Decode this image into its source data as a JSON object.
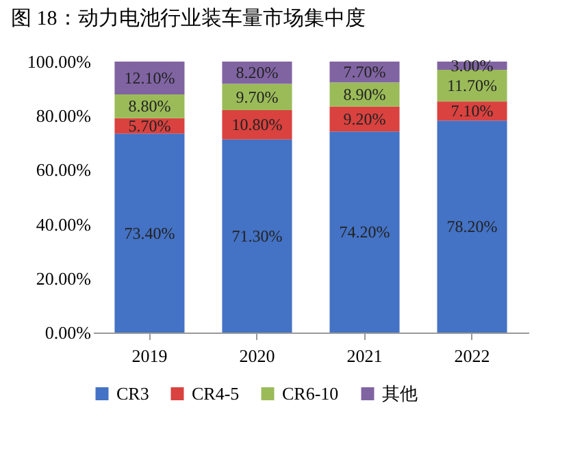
{
  "chart_data": {
    "type": "bar",
    "title": "图 18：动力电池行业装车量市场集中度",
    "stacked": true,
    "legend": "bottom",
    "grid": false,
    "categories": [
      "2019",
      "2020",
      "2021",
      "2022"
    ],
    "ylim": [
      0,
      100
    ],
    "yticks": [
      {
        "value": 0,
        "label": "0.00%"
      },
      {
        "value": 20,
        "label": "20.00%"
      },
      {
        "value": 40,
        "label": "40.00%"
      },
      {
        "value": 60,
        "label": "60.00%"
      },
      {
        "value": 80,
        "label": "80.00%"
      },
      {
        "value": 100,
        "label": "100.00%"
      }
    ],
    "series": [
      {
        "name": "CR3",
        "color": "#4472c4",
        "values": [
          73.4,
          71.3,
          74.2,
          78.2
        ],
        "value_labels": [
          "73.40%",
          "71.30%",
          "74.20%",
          "78.20%"
        ]
      },
      {
        "name": "CR4-5",
        "color": "#d9423f",
        "values": [
          5.7,
          10.8,
          9.2,
          7.1
        ],
        "value_labels": [
          "5.70%",
          "10.80%",
          "9.20%",
          "7.10%"
        ]
      },
      {
        "name": "CR6-10",
        "color": "#9bbb59",
        "values": [
          8.8,
          9.7,
          8.9,
          11.7
        ],
        "value_labels": [
          "8.80%",
          "9.70%",
          "8.90%",
          "11.70%"
        ]
      },
      {
        "name": "其他",
        "color": "#8064a2",
        "values": [
          12.1,
          8.2,
          7.7,
          3.0
        ],
        "value_labels": [
          "12.10%",
          "8.20%",
          "7.70%",
          "3.00%"
        ]
      }
    ]
  }
}
